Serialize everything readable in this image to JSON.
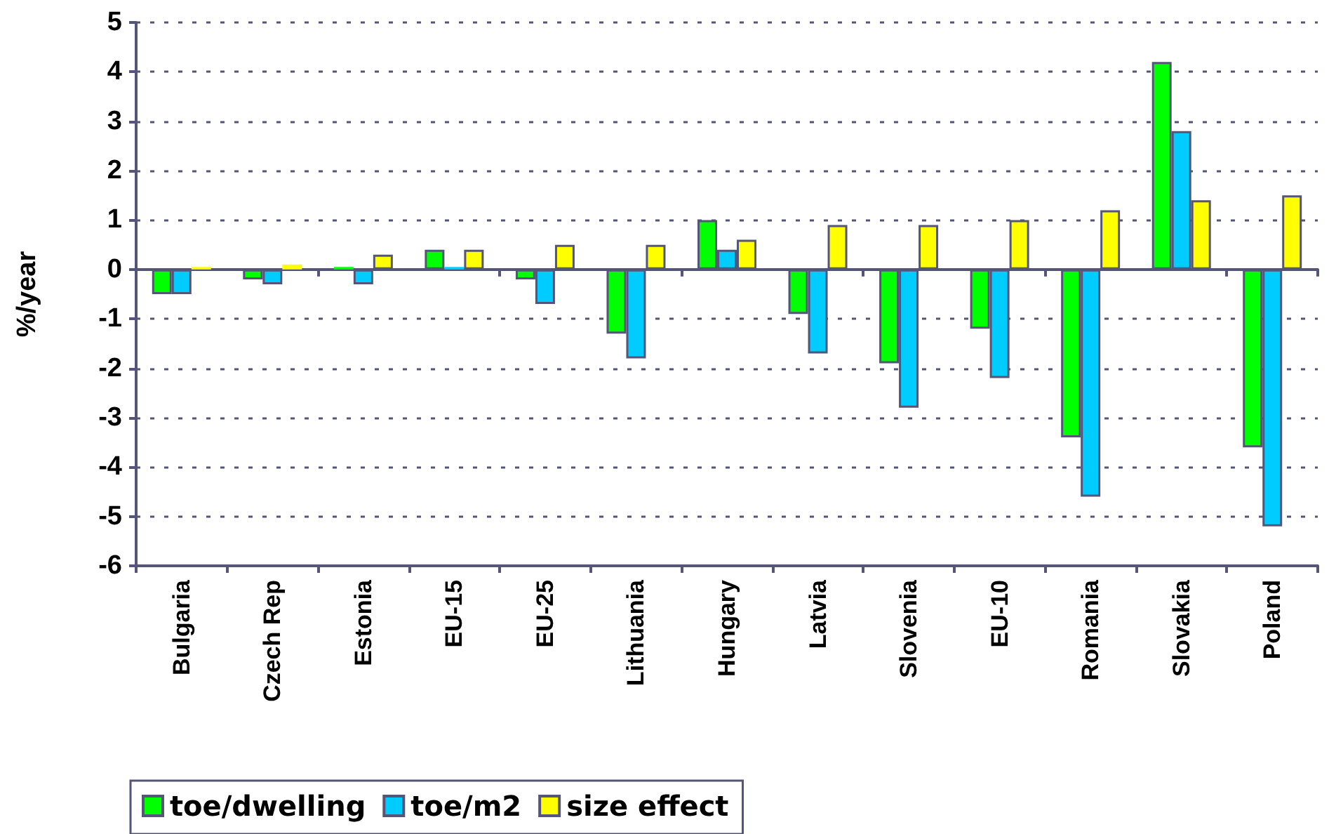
{
  "chart_data": {
    "type": "bar",
    "ylabel": "%/year",
    "categories": [
      "Bulgaria",
      "Czech Rep",
      "Estonia",
      "EU-15",
      "EU-25",
      "Lithuania",
      "Hungary",
      "Latvia",
      "Slovenia",
      "EU-10",
      "Romania",
      "Slovakia",
      "Poland"
    ],
    "series": [
      {
        "name": "toe/dwelling",
        "color": "#00ff00",
        "values": [
          -0.5,
          -0.2,
          0.05,
          0.4,
          -0.2,
          -1.3,
          1.0,
          -0.9,
          -1.9,
          -1.2,
          -3.4,
          4.2,
          -3.6
        ]
      },
      {
        "name": "toe/m2",
        "color": "#00ccff",
        "values": [
          -0.5,
          -0.3,
          -0.3,
          0.05,
          -0.7,
          -1.8,
          0.4,
          -1.7,
          -2.8,
          -2.2,
          -4.6,
          2.8,
          -5.2
        ]
      },
      {
        "name": "size effect",
        "color": "#ffff00",
        "values": [
          0.05,
          0.1,
          0.3,
          0.4,
          0.5,
          0.5,
          0.6,
          0.9,
          0.9,
          1.0,
          1.2,
          1.4,
          1.5
        ]
      }
    ],
    "ylim": [
      -6,
      5
    ],
    "yticks": [
      -6,
      -5,
      -4,
      -3,
      -2,
      -1,
      0,
      1,
      2,
      3,
      4,
      5
    ],
    "grid": "y",
    "legend": "bottom left"
  }
}
